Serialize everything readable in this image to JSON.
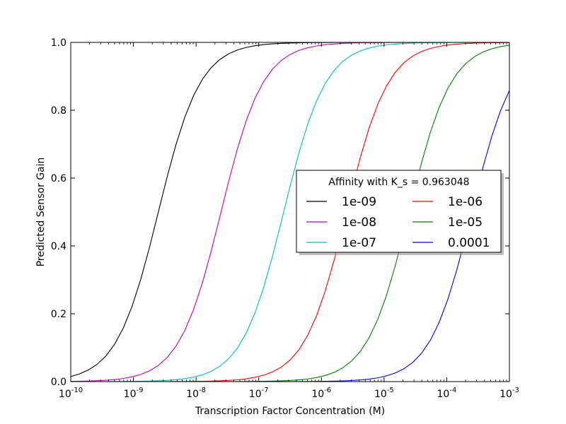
{
  "chart_data": {
    "type": "line",
    "title": "",
    "xlabel": "Transcription Factor Concentration (M)",
    "ylabel": "Predicted Sensor Gain",
    "x_scale": "log",
    "xlim": [
      1e-10,
      0.001
    ],
    "ylim": [
      0,
      1
    ],
    "x_ticks": [
      {
        "base": "10",
        "exp": "-10"
      },
      {
        "base": "10",
        "exp": "-9"
      },
      {
        "base": "10",
        "exp": "-8"
      },
      {
        "base": "10",
        "exp": "-7"
      },
      {
        "base": "10",
        "exp": "-6"
      },
      {
        "base": "10",
        "exp": "-5"
      },
      {
        "base": "10",
        "exp": "-4"
      },
      {
        "base": "10",
        "exp": "-3"
      }
    ],
    "y_ticks": [
      "0.0",
      "0.2",
      "0.4",
      "0.6",
      "0.8",
      "1.0"
    ],
    "grid": false,
    "legend": {
      "title": "Affinity with K_s = 0.963048",
      "placement": "center-right",
      "columns": 2
    },
    "x": [
      1e-10,
      1e-09,
      1e-08,
      1e-07,
      1e-06,
      1e-05,
      0.0001,
      0.001
    ],
    "series": [
      {
        "name": "1e-09",
        "color": "#000000",
        "midpoint": 2.5e-09,
        "hill": 1.3,
        "values": [
          0.05,
          0.33,
          0.84,
          0.98,
          1.0,
          1.0,
          1.0,
          1.0
        ]
      },
      {
        "name": "1e-08",
        "color": "#bf00bf",
        "midpoint": 2.5e-08,
        "hill": 1.3,
        "values": [
          0.005,
          0.05,
          0.33,
          0.84,
          0.98,
          1.0,
          1.0,
          1.0
        ]
      },
      {
        "name": "1e-07",
        "color": "#00bfbf",
        "midpoint": 2.5e-07,
        "hill": 1.3,
        "values": [
          0.0,
          0.005,
          0.05,
          0.33,
          0.84,
          0.98,
          1.0,
          1.0
        ]
      },
      {
        "name": "1e-06",
        "color": "#ff0000",
        "midpoint": 2.5e-06,
        "hill": 1.3,
        "values": [
          0.0,
          0.0,
          0.005,
          0.05,
          0.33,
          0.84,
          0.98,
          1.0
        ]
      },
      {
        "name": "1e-05",
        "color": "#008000",
        "midpoint": 2.5e-05,
        "hill": 1.3,
        "values": [
          0.0,
          0.0,
          0.0,
          0.005,
          0.05,
          0.33,
          0.84,
          0.98
        ]
      },
      {
        "name": "0.0001",
        "color": "#0000ff",
        "midpoint": 0.00025,
        "hill": 1.3,
        "values": [
          0.0,
          0.0,
          0.0,
          0.0,
          0.005,
          0.05,
          0.33,
          0.83
        ]
      }
    ]
  }
}
